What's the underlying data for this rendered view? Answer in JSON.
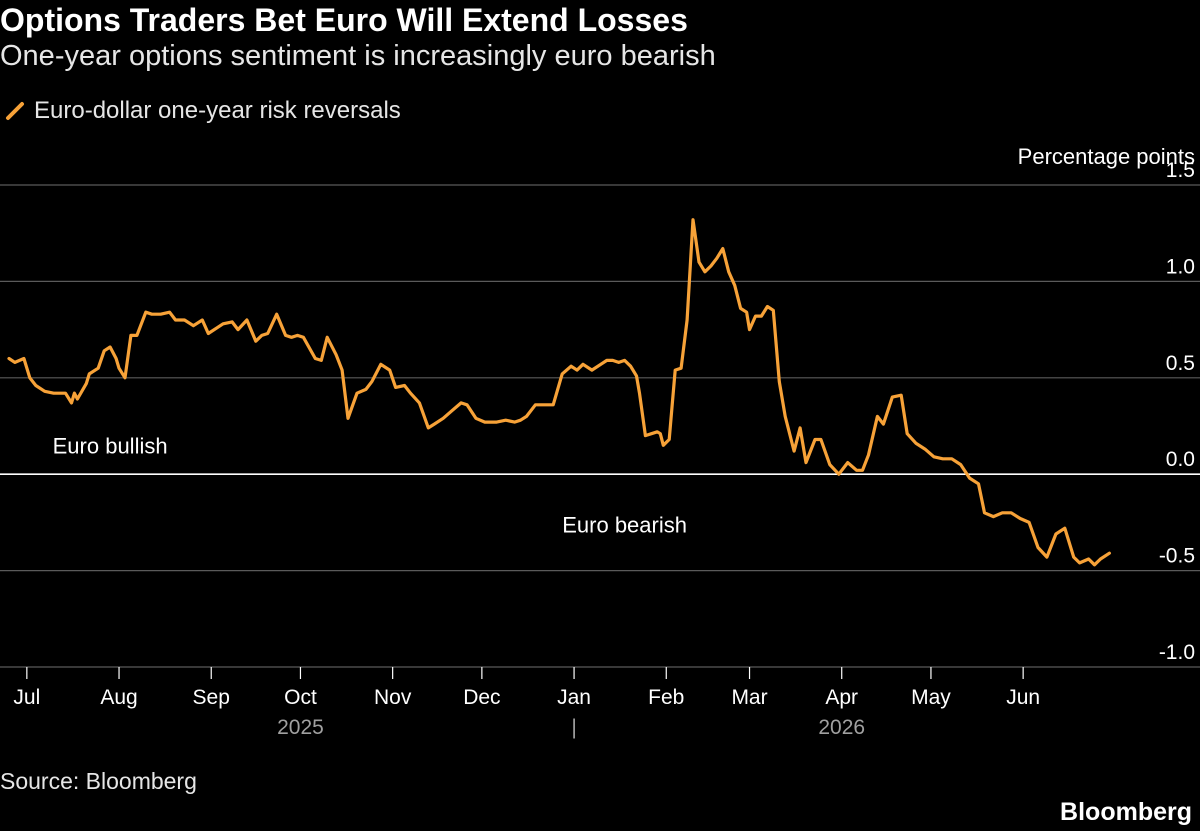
{
  "header": {
    "title": "Options Traders Bet Euro Will Extend Losses",
    "subtitle": "One-year options sentiment is increasingly euro bearish"
  },
  "legend": {
    "label": "Euro-dollar one-year risk reversals"
  },
  "footer": {
    "source": "Source: Bloomberg",
    "brand": "Bloomberg"
  },
  "colors": {
    "background": "#000000",
    "series": "#f7a238",
    "grid": "#5a5a5a",
    "zero_line": "#ffffff",
    "text": "#ffffff",
    "muted": "#a0a0a0"
  },
  "chart_data": {
    "type": "line",
    "ylabel": "Percentage points",
    "ylim": [
      -1.0,
      1.5
    ],
    "y_ticks": [
      1.5,
      1.0,
      0.5,
      0.0,
      -0.5,
      -1.0
    ],
    "y_tick_labels": [
      "1.5",
      "1.0",
      "0.5",
      "0.0",
      "-0.5",
      "-1.0"
    ],
    "x_tick_labels": [
      "Jul",
      "Aug",
      "Sep",
      "Oct",
      "Nov",
      "Dec",
      "Jan",
      "Feb",
      "Mar",
      "Apr",
      "May",
      "Jun"
    ],
    "x_ticks": [
      "2025-07-01",
      "2025-08-01",
      "2025-09-01",
      "2025-10-01",
      "2025-11-01",
      "2025-12-01",
      "2026-01-01",
      "2026-02-01",
      "2026-03-01",
      "2026-04-01",
      "2026-05-01",
      "2026-06-01"
    ],
    "years": [
      {
        "label": "2025",
        "at": "2025-10-01"
      },
      {
        "label": "2026",
        "at": "2026-04-01"
      }
    ],
    "year_divider": "|",
    "year_divider_at": "2026-01-01",
    "xlim": [
      "2025-06-25",
      "2026-07-15"
    ],
    "annotations": [
      {
        "text": "Euro bullish",
        "x": "2025-07-29",
        "y": 0.15
      },
      {
        "text": "Euro bearish",
        "x": "2026-01-18",
        "y": -0.26
      }
    ],
    "grid": true,
    "series": [
      {
        "name": "Euro-dollar one-year risk reversals",
        "x": [
          "2025-06-25",
          "2025-06-27",
          "2025-06-30",
          "2025-07-02",
          "2025-07-04",
          "2025-07-07",
          "2025-07-10",
          "2025-07-14",
          "2025-07-16",
          "2025-07-17",
          "2025-07-18",
          "2025-07-21",
          "2025-07-22",
          "2025-07-25",
          "2025-07-27",
          "2025-07-29",
          "2025-07-31",
          "2025-08-01",
          "2025-08-03",
          "2025-08-05",
          "2025-08-07",
          "2025-08-10",
          "2025-08-12",
          "2025-08-15",
          "2025-08-18",
          "2025-08-20",
          "2025-08-23",
          "2025-08-26",
          "2025-08-29",
          "2025-08-31",
          "2025-09-03",
          "2025-09-05",
          "2025-09-08",
          "2025-09-10",
          "2025-09-13",
          "2025-09-16",
          "2025-09-18",
          "2025-09-20",
          "2025-09-23",
          "2025-09-26",
          "2025-09-28",
          "2025-09-30",
          "2025-10-02",
          "2025-10-06",
          "2025-10-08",
          "2025-10-10",
          "2025-10-13",
          "2025-10-15",
          "2025-10-17",
          "2025-10-20",
          "2025-10-23",
          "2025-10-25",
          "2025-10-28",
          "2025-10-31",
          "2025-11-02",
          "2025-11-05",
          "2025-11-07",
          "2025-11-10",
          "2025-11-13",
          "2025-11-15",
          "2025-11-18",
          "2025-11-21",
          "2025-11-24",
          "2025-11-26",
          "2025-11-29",
          "2025-12-02",
          "2025-12-04",
          "2025-12-06",
          "2025-12-09",
          "2025-12-12",
          "2025-12-14",
          "2025-12-16",
          "2025-12-19",
          "2025-12-22",
          "2025-12-25",
          "2025-12-28",
          "2025-12-31",
          "2026-01-02",
          "2026-01-04",
          "2026-01-07",
          "2026-01-10",
          "2026-01-12",
          "2026-01-14",
          "2026-01-16",
          "2026-01-18",
          "2026-01-20",
          "2026-01-22",
          "2026-01-23",
          "2026-01-25",
          "2026-01-27",
          "2026-01-29",
          "2026-01-30",
          "2026-01-31",
          "2026-02-02",
          "2026-02-04",
          "2026-02-06",
          "2026-02-08",
          "2026-02-10",
          "2026-02-12",
          "2026-02-14",
          "2026-02-16",
          "2026-02-18",
          "2026-02-20",
          "2026-02-22",
          "2026-02-24",
          "2026-02-26",
          "2026-02-28",
          "2026-03-01",
          "2026-03-03",
          "2026-03-05",
          "2026-03-07",
          "2026-03-09",
          "2026-03-11",
          "2026-03-13",
          "2026-03-16",
          "2026-03-18",
          "2026-03-20",
          "2026-03-23",
          "2026-03-25",
          "2026-03-28",
          "2026-03-31",
          "2026-04-03",
          "2026-04-06",
          "2026-04-08",
          "2026-04-10",
          "2026-04-13",
          "2026-04-15",
          "2026-04-18",
          "2026-04-21",
          "2026-04-23",
          "2026-04-26",
          "2026-04-29",
          "2026-05-02",
          "2026-05-05",
          "2026-05-08",
          "2026-05-11",
          "2026-05-14",
          "2026-05-17",
          "2026-05-19",
          "2026-05-22",
          "2026-05-25",
          "2026-05-28",
          "2026-05-31",
          "2026-06-03",
          "2026-06-06",
          "2026-06-09",
          "2026-06-12",
          "2026-06-15",
          "2026-06-18",
          "2026-06-20",
          "2026-06-23",
          "2026-06-25",
          "2026-06-27",
          "2026-06-30"
        ],
        "y": [
          0.6,
          0.58,
          0.6,
          0.5,
          0.46,
          0.43,
          0.42,
          0.42,
          0.37,
          0.42,
          0.39,
          0.47,
          0.52,
          0.55,
          0.64,
          0.66,
          0.6,
          0.55,
          0.5,
          0.72,
          0.72,
          0.84,
          0.83,
          0.83,
          0.84,
          0.8,
          0.8,
          0.77,
          0.8,
          0.73,
          0.76,
          0.78,
          0.79,
          0.75,
          0.8,
          0.69,
          0.72,
          0.73,
          0.83,
          0.72,
          0.71,
          0.72,
          0.71,
          0.6,
          0.59,
          0.71,
          0.62,
          0.54,
          0.29,
          0.42,
          0.44,
          0.48,
          0.57,
          0.54,
          0.45,
          0.46,
          0.42,
          0.37,
          0.24,
          0.26,
          0.29,
          0.33,
          0.37,
          0.36,
          0.29,
          0.27,
          0.27,
          0.27,
          0.28,
          0.27,
          0.28,
          0.3,
          0.36,
          0.36,
          0.36,
          0.52,
          0.56,
          0.54,
          0.57,
          0.54,
          0.57,
          0.59,
          0.59,
          0.58,
          0.59,
          0.56,
          0.51,
          0.42,
          0.2,
          0.21,
          0.22,
          0.21,
          0.15,
          0.18,
          0.54,
          0.55,
          0.8,
          1.32,
          1.1,
          1.05,
          1.08,
          1.12,
          1.17,
          1.05,
          0.98,
          0.86,
          0.84,
          0.75,
          0.82,
          0.82,
          0.87,
          0.85,
          0.48,
          0.3,
          0.12,
          0.24,
          0.06,
          0.18,
          0.18,
          0.05,
          0.0,
          0.06,
          0.02,
          0.02,
          0.1,
          0.3,
          0.26,
          0.4,
          0.41,
          0.21,
          0.16,
          0.13,
          0.09,
          0.08,
          0.08,
          0.05,
          -0.02,
          -0.05,
          -0.2,
          -0.22,
          -0.2,
          -0.2,
          -0.23,
          -0.25,
          -0.38,
          -0.43,
          -0.31,
          -0.28,
          -0.43,
          -0.46,
          -0.44,
          -0.47,
          -0.44,
          -0.41
        ]
      }
    ]
  }
}
